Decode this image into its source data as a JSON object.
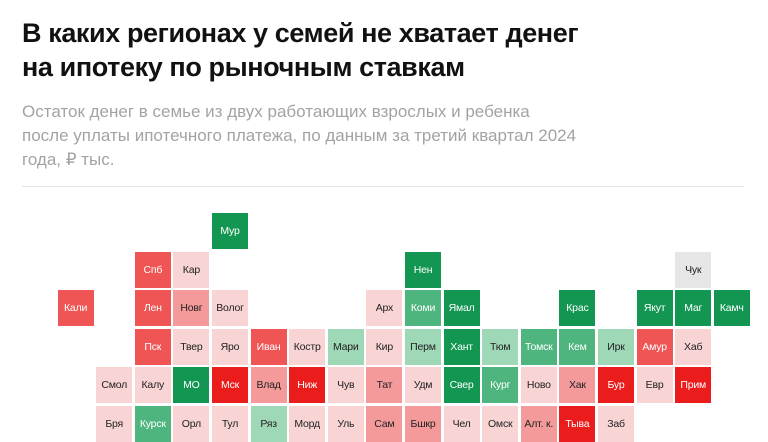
{
  "title": "В каких регионах у семей не хватает денег\nна ипотеку по рыночным ставкам",
  "subtitle": "Остаток денег в семье из двух работающих взрослых и ребенка\nпосле уплаты ипотечного платежа, по данным за третий квартал 2024\nгода, ₽ тыс.",
  "colors": {
    "background": "#ffffff",
    "title": "#111111",
    "subtitle": "#a3a3a3",
    "divider": "#e3e3e3",
    "scale": {
      "-3": "#ea1c1c",
      "-2": "#ef5555",
      "-1": "#f59a9a",
      "0": "#f8d4d4",
      "n": "#e6e6e6",
      "1": "#9fd8b7",
      "2": "#4fb57e",
      "3": "#129652"
    }
  },
  "chart_data": {
    "type": "heatmap",
    "description_scale": "цветовая шкала от красного (не хватает денег) к зеленому (остаток денег)",
    "cells": [
      {
        "label": "Мур",
        "col": 5,
        "row": 0,
        "level": 3
      },
      {
        "label": "Спб",
        "col": 3,
        "row": 1,
        "level": -2
      },
      {
        "label": "Кар",
        "col": 4,
        "row": 1,
        "level": 0
      },
      {
        "label": "Нен",
        "col": 10,
        "row": 1,
        "level": 3
      },
      {
        "label": "Чук",
        "col": 17,
        "row": 1,
        "level": "n"
      },
      {
        "label": "Кали",
        "col": 1,
        "row": 2,
        "level": -2
      },
      {
        "label": "Лен",
        "col": 3,
        "row": 2,
        "level": -2
      },
      {
        "label": "Новг",
        "col": 4,
        "row": 2,
        "level": -1
      },
      {
        "label": "Волог",
        "col": 5,
        "row": 2,
        "level": 0
      },
      {
        "label": "Арх",
        "col": 9,
        "row": 2,
        "level": 0
      },
      {
        "label": "Коми",
        "col": 10,
        "row": 2,
        "level": 2
      },
      {
        "label": "Ямал",
        "col": 11,
        "row": 2,
        "level": 3
      },
      {
        "label": "Крас",
        "col": 14,
        "row": 2,
        "level": 3
      },
      {
        "label": "Якут",
        "col": 16,
        "row": 2,
        "level": 3
      },
      {
        "label": "Маг",
        "col": 17,
        "row": 2,
        "level": 3
      },
      {
        "label": "Камч",
        "col": 18,
        "row": 2,
        "level": 3
      },
      {
        "label": "Пск",
        "col": 3,
        "row": 3,
        "level": -2
      },
      {
        "label": "Твер",
        "col": 4,
        "row": 3,
        "level": 0
      },
      {
        "label": "Яро",
        "col": 5,
        "row": 3,
        "level": 0
      },
      {
        "label": "Иван",
        "col": 6,
        "row": 3,
        "level": -2
      },
      {
        "label": "Костр",
        "col": 7,
        "row": 3,
        "level": 0
      },
      {
        "label": "Мари",
        "col": 8,
        "row": 3,
        "level": 1
      },
      {
        "label": "Кир",
        "col": 9,
        "row": 3,
        "level": 0
      },
      {
        "label": "Перм",
        "col": 10,
        "row": 3,
        "level": 1
      },
      {
        "label": "Хант",
        "col": 11,
        "row": 3,
        "level": 3
      },
      {
        "label": "Тюм",
        "col": 12,
        "row": 3,
        "level": 1
      },
      {
        "label": "Томск",
        "col": 13,
        "row": 3,
        "level": 2
      },
      {
        "label": "Кем",
        "col": 14,
        "row": 3,
        "level": 2
      },
      {
        "label": "Ирк",
        "col": 15,
        "row": 3,
        "level": 1
      },
      {
        "label": "Амур",
        "col": 16,
        "row": 3,
        "level": -2
      },
      {
        "label": "Хаб",
        "col": 17,
        "row": 3,
        "level": 0
      },
      {
        "label": "Смол",
        "col": 2,
        "row": 4,
        "level": 0
      },
      {
        "label": "Калу",
        "col": 3,
        "row": 4,
        "level": 0
      },
      {
        "label": "МО",
        "col": 4,
        "row": 4,
        "level": 3
      },
      {
        "label": "Мск",
        "col": 5,
        "row": 4,
        "level": -3
      },
      {
        "label": "Влад",
        "col": 6,
        "row": 4,
        "level": -1
      },
      {
        "label": "Ниж",
        "col": 7,
        "row": 4,
        "level": -3
      },
      {
        "label": "Чув",
        "col": 8,
        "row": 4,
        "level": 0
      },
      {
        "label": "Тат",
        "col": 9,
        "row": 4,
        "level": -1
      },
      {
        "label": "Удм",
        "col": 10,
        "row": 4,
        "level": 0
      },
      {
        "label": "Свер",
        "col": 11,
        "row": 4,
        "level": 3
      },
      {
        "label": "Кург",
        "col": 12,
        "row": 4,
        "level": 2
      },
      {
        "label": "Ново",
        "col": 13,
        "row": 4,
        "level": 0
      },
      {
        "label": "Хак",
        "col": 14,
        "row": 4,
        "level": -1
      },
      {
        "label": "Бур",
        "col": 15,
        "row": 4,
        "level": -3
      },
      {
        "label": "Евр",
        "col": 16,
        "row": 4,
        "level": 0
      },
      {
        "label": "Прим",
        "col": 17,
        "row": 4,
        "level": -3
      },
      {
        "label": "Бря",
        "col": 2,
        "row": 5,
        "level": 0
      },
      {
        "label": "Курск",
        "col": 3,
        "row": 5,
        "level": 2
      },
      {
        "label": "Орл",
        "col": 4,
        "row": 5,
        "level": 0
      },
      {
        "label": "Тул",
        "col": 5,
        "row": 5,
        "level": 0
      },
      {
        "label": "Ряз",
        "col": 6,
        "row": 5,
        "level": 1
      },
      {
        "label": "Морд",
        "col": 7,
        "row": 5,
        "level": 0
      },
      {
        "label": "Уль",
        "col": 8,
        "row": 5,
        "level": 0
      },
      {
        "label": "Сам",
        "col": 9,
        "row": 5,
        "level": -1
      },
      {
        "label": "Бшкр",
        "col": 10,
        "row": 5,
        "level": -1
      },
      {
        "label": "Чел",
        "col": 11,
        "row": 5,
        "level": 0
      },
      {
        "label": "Омск",
        "col": 12,
        "row": 5,
        "level": 0
      },
      {
        "label": "Алт. к.",
        "col": 13,
        "row": 5,
        "level": -1
      },
      {
        "label": "Тыва",
        "col": 14,
        "row": 5,
        "level": -3
      },
      {
        "label": "Заб",
        "col": 15,
        "row": 5,
        "level": 0
      }
    ]
  }
}
